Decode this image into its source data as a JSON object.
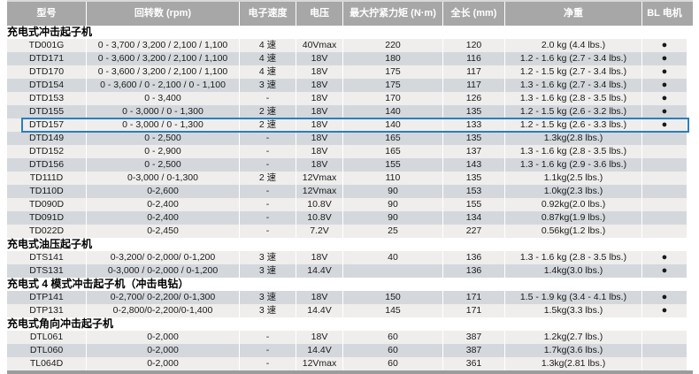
{
  "table": {
    "columns": [
      "型号",
      "回转数 (rpm)",
      "电子速度",
      "电压",
      "最大拧紧力矩 (N·m)",
      "全长 (mm)",
      "净重",
      "BL 电机"
    ],
    "bl_dot": "●",
    "sections": [
      {
        "title": "充电式冲击起子机",
        "rows": [
          {
            "model": "TD001G",
            "rpm": "0 - 3,700 / 3,200 / 2,100 / 1,100",
            "speed": "4 速",
            "voltage": "40Vmax",
            "torque": "220",
            "length": "120",
            "weight": "2.0 kg (4.4 lbs.)",
            "bl": true,
            "shade": "light",
            "highlighted": false
          },
          {
            "model": "DTD171",
            "rpm": "0 - 3,600 / 3,200 / 2,100 / 1,100",
            "speed": "4 速",
            "voltage": "18V",
            "torque": "180",
            "length": "116",
            "weight": "1.2 - 1.6 kg (2.7 - 3.4 lbs.)",
            "bl": true,
            "shade": "dark",
            "highlighted": false
          },
          {
            "model": "DTD170",
            "rpm": "0 - 3,600 / 3,200 / 2,100 / 1,100",
            "speed": "4 速",
            "voltage": "18V",
            "torque": "175",
            "length": "117",
            "weight": "1.2 - 1.5 kg (2.7 - 3.4 lbs.)",
            "bl": true,
            "shade": "light",
            "highlighted": false
          },
          {
            "model": "DTD154",
            "rpm": "0 - 3,600 / 0 - 2,100 / 0 - 1,100",
            "speed": "3 速",
            "voltage": "18V",
            "torque": "175",
            "length": "117",
            "weight": "1.3 - 1.6 kg (2.7 - 3.4 lbs.)",
            "bl": true,
            "shade": "dark",
            "highlighted": false
          },
          {
            "model": "DTD153",
            "rpm": "0 - 3,400",
            "speed": "-",
            "voltage": "18V",
            "torque": "170",
            "length": "126",
            "weight": "1.3 - 1.6 kg (2.8 - 3.5 lbs.)",
            "bl": true,
            "shade": "light",
            "highlighted": false
          },
          {
            "model": "DTD155",
            "rpm": "0 - 3,000 / 0 - 1,300",
            "speed": "2 速",
            "voltage": "18V",
            "torque": "140",
            "length": "135",
            "weight": "1.2 - 1.5 kg (2.6 - 3.2 lbs.)",
            "bl": true,
            "shade": "dark",
            "highlighted": false
          },
          {
            "model": "DTD157",
            "rpm": "0 - 3,000 / 0 - 1,300",
            "speed": "2 速",
            "voltage": "18V",
            "torque": "140",
            "length": "133",
            "weight": "1.2 - 1.5 kg (2.6 - 3.3 lbs.)",
            "bl": true,
            "shade": "light",
            "highlighted": true
          },
          {
            "model": "DTD149",
            "rpm": "0 - 2,500",
            "speed": "-",
            "voltage": "18V",
            "torque": "165",
            "length": "135",
            "weight": "1.3kg(2.8 lbs.)",
            "bl": false,
            "shade": "dark",
            "highlighted": false
          },
          {
            "model": "DTD152",
            "rpm": "0 - 2,900",
            "speed": "-",
            "voltage": "18V",
            "torque": "165",
            "length": "137",
            "weight": "1.3 - 1.6 kg (2.8 - 3.5 lbs.)",
            "bl": false,
            "shade": "light",
            "highlighted": false
          },
          {
            "model": "DTD156",
            "rpm": "0 - 2,500",
            "speed": "-",
            "voltage": "18V",
            "torque": "155",
            "length": "143",
            "weight": "1.3 - 1.6 kg (2.9 - 3.6 lbs.)",
            "bl": false,
            "shade": "dark",
            "highlighted": false
          },
          {
            "model": "TD111D",
            "rpm": "0-3,000 / 0-1,300",
            "speed": "2 速",
            "voltage": "12Vmax",
            "torque": "110",
            "length": "135",
            "weight": "1.1kg(2.5 lbs.)",
            "bl": false,
            "shade": "light",
            "highlighted": false
          },
          {
            "model": "TD110D",
            "rpm": "0-2,600",
            "speed": "-",
            "voltage": "12Vmax",
            "torque": "90",
            "length": "153",
            "weight": "1.0kg(2.3 lbs.)",
            "bl": false,
            "shade": "dark",
            "highlighted": false
          },
          {
            "model": "TD090D",
            "rpm": "0-2,400",
            "speed": "-",
            "voltage": "10.8V",
            "torque": "90",
            "length": "155",
            "weight": "0.92kg(2.0 lbs.)",
            "bl": false,
            "shade": "light",
            "highlighted": false
          },
          {
            "model": "TD091D",
            "rpm": "0-2,400",
            "speed": "-",
            "voltage": "10.8V",
            "torque": "90",
            "length": "134",
            "weight": "0.87kg(1.9 lbs.)",
            "bl": false,
            "shade": "dark",
            "highlighted": false
          },
          {
            "model": "TD022D",
            "rpm": "0-2,450",
            "speed": "-",
            "voltage": "7.2V",
            "torque": "25",
            "length": "227",
            "weight": "0.56kg(1.2 lbs.)",
            "bl": false,
            "shade": "light",
            "highlighted": false
          }
        ]
      },
      {
        "title": "充电式油压起子机",
        "rows": [
          {
            "model": "DTS141",
            "rpm": "0-3,200/ 0-2,000/ 0-1,200",
            "speed": "3 速",
            "voltage": "18V",
            "torque": "40",
            "length": "136",
            "weight": "1.3 - 1.6 kg (2.8 - 3.5 lbs.)",
            "bl": true,
            "shade": "light",
            "highlighted": false
          },
          {
            "model": "DTS131",
            "rpm": "0-3,000 / 0-2,000 / 0-1,200",
            "speed": "3 速",
            "voltage": "14.4V",
            "torque": "",
            "length": "136",
            "weight": "1.4kg(3.0 lbs.)",
            "bl": true,
            "shade": "dark",
            "highlighted": false
          }
        ]
      },
      {
        "title": "充电式 4 模式冲击起子机（冲击电钻）",
        "rows": [
          {
            "model": "DTP141",
            "rpm": "0-2,700/ 0-2,200/ 0-1,300",
            "speed": "3 速",
            "voltage": "18V",
            "torque": "150",
            "length": "171",
            "weight": "1.5 - 1.9 kg (3.4 - 4.1 lbs.)",
            "bl": true,
            "shade": "dark",
            "highlighted": false
          },
          {
            "model": "DTP131",
            "rpm": "0-2,800/0-2,200/0-1,400",
            "speed": "3 速",
            "voltage": "14.4V",
            "torque": "145",
            "length": "171",
            "weight": "1.5kg(3.3 lbs.)",
            "bl": true,
            "shade": "light",
            "highlighted": false
          }
        ]
      },
      {
        "title": "充电式角向冲击起子机",
        "rows": [
          {
            "model": "DTL061",
            "rpm": "0-2,000",
            "speed": "-",
            "voltage": "18V",
            "torque": "60",
            "length": "387",
            "weight": "1.2kg(2.7 lbs.)",
            "bl": false,
            "shade": "light",
            "highlighted": false
          },
          {
            "model": "DTL060",
            "rpm": "0-2,000",
            "speed": "-",
            "voltage": "14.4V",
            "torque": "60",
            "length": "387",
            "weight": "1.7kg(3.6 lbs.)",
            "bl": false,
            "shade": "dark",
            "highlighted": false
          },
          {
            "model": "TL064D",
            "rpm": "0-2,000",
            "speed": "-",
            "voltage": "12Vmax",
            "torque": "60",
            "length": "361",
            "weight": "1.3kg(2.81 lbs.)",
            "bl": false,
            "shade": "light",
            "highlighted": false
          }
        ]
      }
    ]
  },
  "colors": {
    "header_bg": "#a7a7a7",
    "row_light": "#efeeec",
    "row_dark": "#d4d8dd",
    "highlight_border": "#2b7ec0",
    "dot": "#1a1a1a"
  }
}
